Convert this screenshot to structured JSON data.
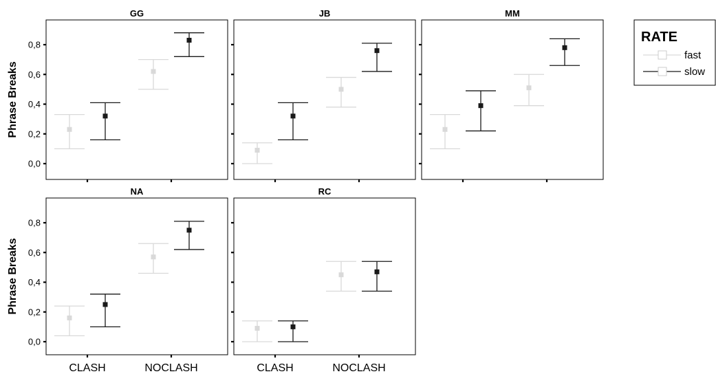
{
  "chart_data": {
    "type": "errorbar",
    "ylabel": "Phrase Breaks",
    "categories": [
      "CLASH",
      "NOCLASH"
    ],
    "yticks": [
      "0,0",
      "0,2",
      "0,4",
      "0,6",
      "0,8"
    ],
    "ylim": [
      -0.09,
      0.96
    ],
    "legend": {
      "title": "RATE",
      "placement": "top-right",
      "entries": [
        {
          "name": "fast",
          "color": "#d9d9d9"
        },
        {
          "name": "slow",
          "color": "#1a1a1a"
        }
      ]
    },
    "panels": [
      {
        "title": "GG",
        "series": [
          {
            "name": "fast",
            "points": [
              {
                "x": "CLASH",
                "mean": 0.23,
                "low": 0.1,
                "high": 0.33
              },
              {
                "x": "NOCLASH",
                "mean": 0.62,
                "low": 0.5,
                "high": 0.7
              }
            ]
          },
          {
            "name": "slow",
            "points": [
              {
                "x": "CLASH",
                "mean": 0.32,
                "low": 0.16,
                "high": 0.41
              },
              {
                "x": "NOCLASH",
                "mean": 0.83,
                "low": 0.72,
                "high": 0.88
              }
            ]
          }
        ]
      },
      {
        "title": "JB",
        "series": [
          {
            "name": "fast",
            "points": [
              {
                "x": "CLASH",
                "mean": 0.09,
                "low": 0.0,
                "high": 0.14
              },
              {
                "x": "NOCLASH",
                "mean": 0.5,
                "low": 0.38,
                "high": 0.58
              }
            ]
          },
          {
            "name": "slow",
            "points": [
              {
                "x": "CLASH",
                "mean": 0.32,
                "low": 0.16,
                "high": 0.41
              },
              {
                "x": "NOCLASH",
                "mean": 0.76,
                "low": 0.62,
                "high": 0.81
              }
            ]
          }
        ]
      },
      {
        "title": "MM",
        "series": [
          {
            "name": "fast",
            "points": [
              {
                "x": "CLASH",
                "mean": 0.23,
                "low": 0.1,
                "high": 0.33
              },
              {
                "x": "NOCLASH",
                "mean": 0.51,
                "low": 0.39,
                "high": 0.6
              }
            ]
          },
          {
            "name": "slow",
            "points": [
              {
                "x": "CLASH",
                "mean": 0.39,
                "low": 0.22,
                "high": 0.49
              },
              {
                "x": "NOCLASH",
                "mean": 0.78,
                "low": 0.66,
                "high": 0.84
              }
            ]
          }
        ]
      },
      {
        "title": "NA",
        "series": [
          {
            "name": "fast",
            "points": [
              {
                "x": "CLASH",
                "mean": 0.16,
                "low": 0.04,
                "high": 0.24
              },
              {
                "x": "NOCLASH",
                "mean": 0.57,
                "low": 0.46,
                "high": 0.66
              }
            ]
          },
          {
            "name": "slow",
            "points": [
              {
                "x": "CLASH",
                "mean": 0.25,
                "low": 0.1,
                "high": 0.32
              },
              {
                "x": "NOCLASH",
                "mean": 0.75,
                "low": 0.62,
                "high": 0.81
              }
            ]
          }
        ]
      },
      {
        "title": "RC",
        "series": [
          {
            "name": "fast",
            "points": [
              {
                "x": "CLASH",
                "mean": 0.09,
                "low": 0.0,
                "high": 0.14
              },
              {
                "x": "NOCLASH",
                "mean": 0.45,
                "low": 0.34,
                "high": 0.54
              }
            ]
          },
          {
            "name": "slow",
            "points": [
              {
                "x": "CLASH",
                "mean": 0.1,
                "low": 0.0,
                "high": 0.14
              },
              {
                "x": "NOCLASH",
                "mean": 0.47,
                "low": 0.34,
                "high": 0.54
              }
            ]
          }
        ]
      }
    ]
  }
}
